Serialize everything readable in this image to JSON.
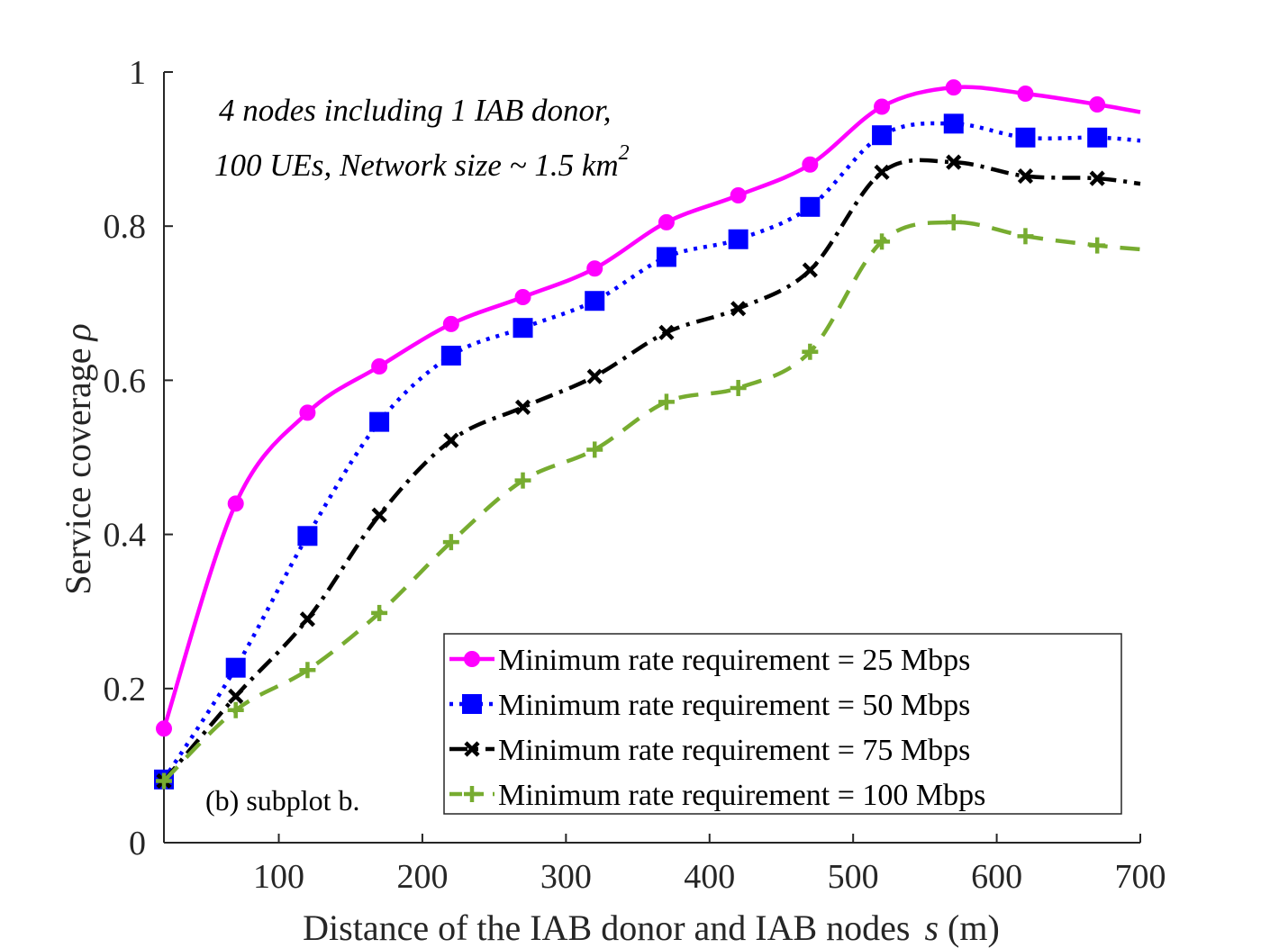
{
  "chart_data": {
    "type": "line",
    "title": "",
    "xlabel_main": "Distance of the IAB donor and IAB nodes",
    "xlabel_var": "s",
    "xlabel_unit": "(m)",
    "ylabel_main": "Service coverage",
    "ylabel_var": "ρ",
    "xlim": [
      20,
      700
    ],
    "ylim": [
      0,
      1
    ],
    "xticks": [
      100,
      200,
      300,
      400,
      500,
      600,
      700
    ],
    "yticks": [
      0,
      0.2,
      0.4,
      0.6,
      0.8,
      1
    ],
    "ytick_labels": [
      "0",
      "0.2",
      "0.4",
      "0.6",
      "0.8",
      "1"
    ],
    "x": [
      20,
      70,
      120,
      170,
      220,
      270,
      320,
      370,
      420,
      470,
      520,
      570,
      620,
      670
    ],
    "series": [
      {
        "name": "Minimum rate requirement = 25 Mbps",
        "color": "#ff00ff",
        "marker": "circle",
        "style": "solid",
        "values": [
          0.148,
          0.44,
          0.558,
          0.618,
          0.673,
          0.708,
          0.745,
          0.805,
          0.84,
          0.88,
          0.955,
          0.98,
          0.972,
          0.958
        ],
        "end_value": 0.948
      },
      {
        "name": "Minimum rate requirement = 50 Mbps",
        "color": "#0000ff",
        "marker": "square",
        "style": "dotted",
        "values": [
          0.082,
          0.227,
          0.398,
          0.546,
          0.632,
          0.668,
          0.703,
          0.76,
          0.783,
          0.825,
          0.918,
          0.933,
          0.915,
          0.915
        ],
        "end_value": 0.911
      },
      {
        "name": "Minimum rate requirement = 75 Mbps",
        "color": "#000000",
        "marker": "x",
        "style": "dashdot",
        "values": [
          0.08,
          0.19,
          0.29,
          0.425,
          0.522,
          0.565,
          0.605,
          0.662,
          0.693,
          0.743,
          0.87,
          0.883,
          0.865,
          0.862
        ],
        "end_value": 0.855
      },
      {
        "name": "Minimum rate requirement = 100 Mbps",
        "color": "#77ac30",
        "marker": "plus",
        "style": "dashed",
        "values": [
          0.08,
          0.172,
          0.224,
          0.298,
          0.39,
          0.47,
          0.51,
          0.572,
          0.59,
          0.637,
          0.78,
          0.805,
          0.787,
          0.775
        ],
        "end_value": 0.77
      }
    ],
    "annotation_line1": "4 nodes including 1 IAB donor,",
    "annotation_line2": "100 UEs, Network size ~ 1.5 km",
    "annotation_sup": "2",
    "subplot_label": "(b) subplot b.",
    "legend_position": "bottom-right"
  }
}
